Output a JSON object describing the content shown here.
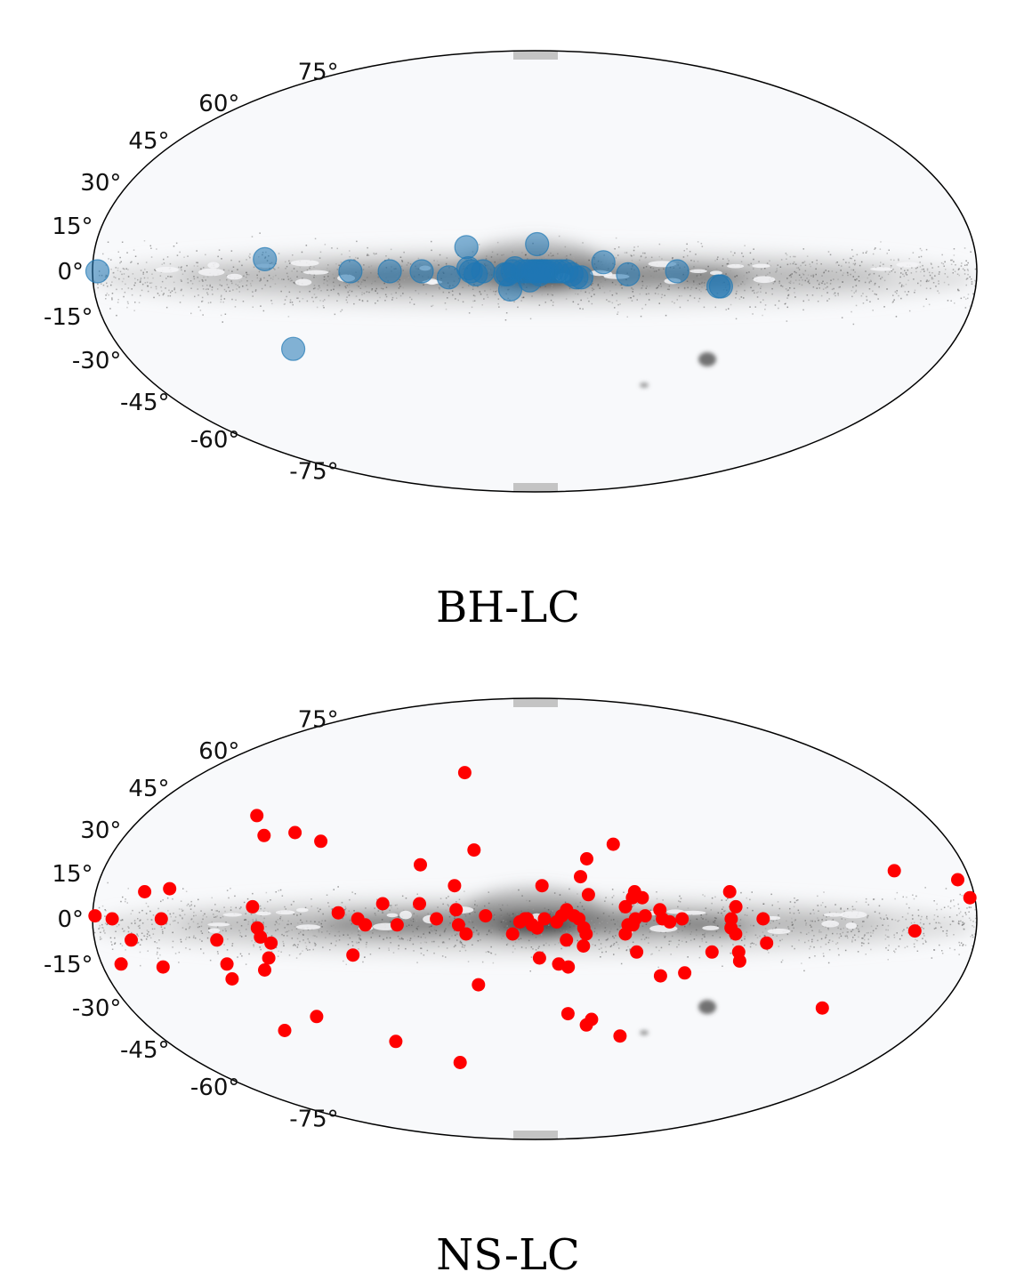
{
  "latitude_tick_labels": [
    "75°",
    "60°",
    "45°",
    "30°",
    "15°",
    "0°",
    "-15°",
    "-30°",
    "-45°",
    "-60°",
    "-75°"
  ],
  "chart_data": [
    {
      "type": "scatter",
      "projection": "mollweide",
      "caption": "BH-LC",
      "marker_color": "#1f77b4",
      "marker_alpha": 0.55,
      "marker_size": "large",
      "points": [
        [
          178,
          0
        ],
        [
          110,
          4
        ],
        [
          105,
          -26
        ],
        [
          75,
          0
        ],
        [
          59,
          0
        ],
        [
          46,
          0
        ],
        [
          35,
          -2
        ],
        [
          27,
          1
        ],
        [
          24,
          -1
        ],
        [
          21,
          0
        ],
        [
          26,
          0
        ],
        [
          28,
          8
        ],
        [
          12,
          -1
        ],
        [
          10,
          -6
        ],
        [
          9,
          0
        ],
        [
          11,
          -1
        ],
        [
          8,
          1
        ],
        [
          5,
          0
        ],
        [
          2,
          -3
        ],
        [
          1,
          0
        ],
        [
          0,
          0
        ],
        [
          -1,
          0
        ],
        [
          -2,
          0
        ],
        [
          -3,
          0
        ],
        [
          -4,
          0
        ],
        [
          -1,
          9
        ],
        [
          -5,
          0
        ],
        [
          -7,
          0
        ],
        [
          -9,
          0
        ],
        [
          -11,
          0
        ],
        [
          -13,
          0
        ],
        [
          -15,
          -1
        ],
        [
          -17,
          -2
        ],
        [
          -19,
          -2
        ],
        [
          -28,
          3
        ],
        [
          -38,
          -1
        ],
        [
          -58,
          0
        ],
        [
          -75,
          -5
        ],
        [
          -76,
          -5
        ],
        [
          3,
          0
        ],
        [
          -2,
          -1
        ]
      ]
    },
    {
      "type": "scatter",
      "projection": "mollweide",
      "caption": "NS-LC",
      "marker_color": "#ff0000",
      "marker_alpha": 1,
      "marker_size": "medium",
      "points": [
        [
          179,
          1
        ],
        [
          172,
          0
        ],
        [
          165,
          -7
        ],
        [
          172,
          -15
        ],
        [
          160,
          9
        ],
        [
          152,
          0
        ],
        [
          155,
          -16
        ],
        [
          150,
          10
        ],
        [
          128,
          -15
        ],
        [
          118,
          -38
        ],
        [
          130,
          -7
        ],
        [
          128,
          -20
        ],
        [
          128,
          35
        ],
        [
          119,
          28
        ],
        [
          115,
          4
        ],
        [
          113,
          -3
        ],
        [
          112,
          -6
        ],
        [
          113,
          -17
        ],
        [
          110,
          -13
        ],
        [
          108,
          -8
        ],
        [
          106,
          29
        ],
        [
          99,
          -33
        ],
        [
          93,
          26
        ],
        [
          80,
          2
        ],
        [
          75,
          -12
        ],
        [
          72,
          0
        ],
        [
          69,
          -2
        ],
        [
          68,
          -42
        ],
        [
          62,
          5
        ],
        [
          56,
          -2
        ],
        [
          48,
          18
        ],
        [
          47,
          5
        ],
        [
          40,
          0
        ],
        [
          40,
          -50
        ],
        [
          38,
          51
        ],
        [
          33,
          11
        ],
        [
          32,
          3
        ],
        [
          31,
          -2
        ],
        [
          28,
          -5
        ],
        [
          26,
          23
        ],
        [
          24,
          -22
        ],
        [
          20,
          1
        ],
        [
          9,
          -5
        ],
        [
          6,
          -1
        ],
        [
          4,
          0
        ],
        [
          3,
          0
        ],
        [
          1,
          -2
        ],
        [
          -2,
          -13
        ],
        [
          -1,
          -3
        ],
        [
          -3,
          11
        ],
        [
          -4,
          0
        ],
        [
          -9,
          -1
        ],
        [
          -10,
          -15
        ],
        [
          -11,
          1
        ],
        [
          -14,
          -16
        ],
        [
          -13,
          3
        ],
        [
          -13,
          -7
        ],
        [
          -16,
          1
        ],
        [
          -15,
          -32
        ],
        [
          -18,
          0
        ],
        [
          -19,
          14
        ],
        [
          -20,
          -3
        ],
        [
          -20,
          -9
        ],
        [
          -21,
          -5
        ],
        [
          -22,
          20
        ],
        [
          -22,
          8
        ],
        [
          -24,
          -36
        ],
        [
          -26,
          -34
        ],
        [
          -34,
          25
        ],
        [
          -37,
          -5
        ],
        [
          -37,
          4
        ],
        [
          -38,
          -2
        ],
        [
          -40,
          7
        ],
        [
          -41,
          9
        ],
        [
          -40,
          -2
        ],
        [
          -41,
          0
        ],
        [
          -41,
          -40
        ],
        [
          -42,
          -11
        ],
        [
          -44,
          7
        ],
        [
          -45,
          1
        ],
        [
          -51,
          3
        ],
        [
          -52,
          0
        ],
        [
          -55,
          -1
        ],
        [
          -53,
          -19
        ],
        [
          -60,
          0
        ],
        [
          -63,
          -18
        ],
        [
          -73,
          -11
        ],
        [
          -80,
          9
        ],
        [
          -80,
          -3
        ],
        [
          -80,
          0
        ],
        [
          -82,
          -5
        ],
        [
          -82,
          4
        ],
        [
          -84,
          -11
        ],
        [
          -85,
          -14
        ],
        [
          -93,
          0
        ],
        [
          -95,
          -8
        ],
        [
          -128,
          -30
        ],
        [
          -150,
          16
        ],
        [
          -155,
          -4
        ],
        [
          -175,
          13
        ],
        [
          -178,
          7
        ]
      ]
    }
  ]
}
